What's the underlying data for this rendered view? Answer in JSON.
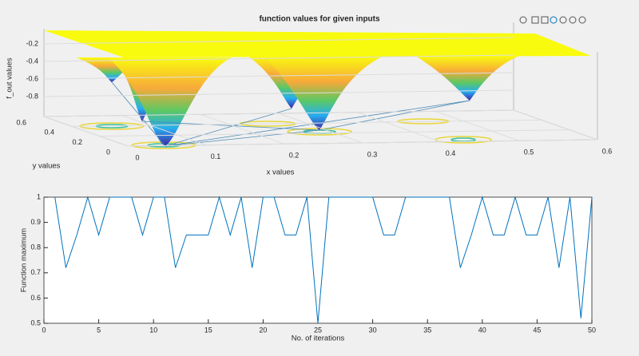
{
  "chart_data": [
    {
      "type": "surface3d",
      "title": "function values for given inputs",
      "xlabel": "x values",
      "ylabel": "y values",
      "zlabel": "f_out values",
      "xlim": [
        0,
        0.6
      ],
      "xticks": [
        0,
        0.1,
        0.2,
        0.3,
        0.4,
        0.5,
        0.6
      ],
      "ylim": [
        0,
        0.6
      ],
      "yticks": [
        0,
        0.2,
        0.4,
        0.6
      ],
      "zlim": [
        -1,
        0
      ],
      "zticks": [
        -0.2,
        -0.4,
        -0.6,
        -0.8
      ],
      "grid": true
    },
    {
      "type": "line",
      "xlabel": "No. of iterations",
      "ylabel": "Function maximum",
      "x": [
        1,
        2,
        3,
        4,
        5,
        6,
        7,
        8,
        9,
        10,
        11,
        12,
        13,
        14,
        15,
        16,
        17,
        18,
        19,
        20,
        21,
        22,
        23,
        24,
        25,
        26,
        27,
        28,
        29,
        30,
        31,
        32,
        33,
        34,
        35,
        36,
        37,
        38,
        39,
        40,
        41,
        42,
        43,
        44,
        45,
        46,
        47,
        48,
        49,
        50
      ],
      "series": [
        {
          "color": "#0072bd",
          "values": [
            1,
            0.72,
            0.85,
            1,
            0.85,
            1,
            1,
            1,
            0.85,
            1,
            1,
            0.72,
            0.85,
            0.85,
            0.85,
            1,
            0.85,
            1,
            0.72,
            1,
            1,
            0.85,
            0.85,
            1,
            0.5,
            1,
            1,
            1,
            1,
            1,
            0.85,
            0.85,
            1,
            1,
            1,
            1,
            1,
            0.72,
            0.85,
            1,
            0.85,
            0.85,
            1,
            0.85,
            0.85,
            1,
            0.72,
            1,
            0.52,
            1
          ]
        }
      ],
      "xlim": [
        0,
        50
      ],
      "xticks": [
        0,
        5,
        10,
        15,
        20,
        25,
        30,
        35,
        40,
        45,
        50
      ],
      "ylim": [
        0.5,
        1
      ],
      "yticks": [
        0.5,
        0.6,
        0.7,
        0.8,
        0.9,
        1
      ],
      "grid": false
    }
  ]
}
